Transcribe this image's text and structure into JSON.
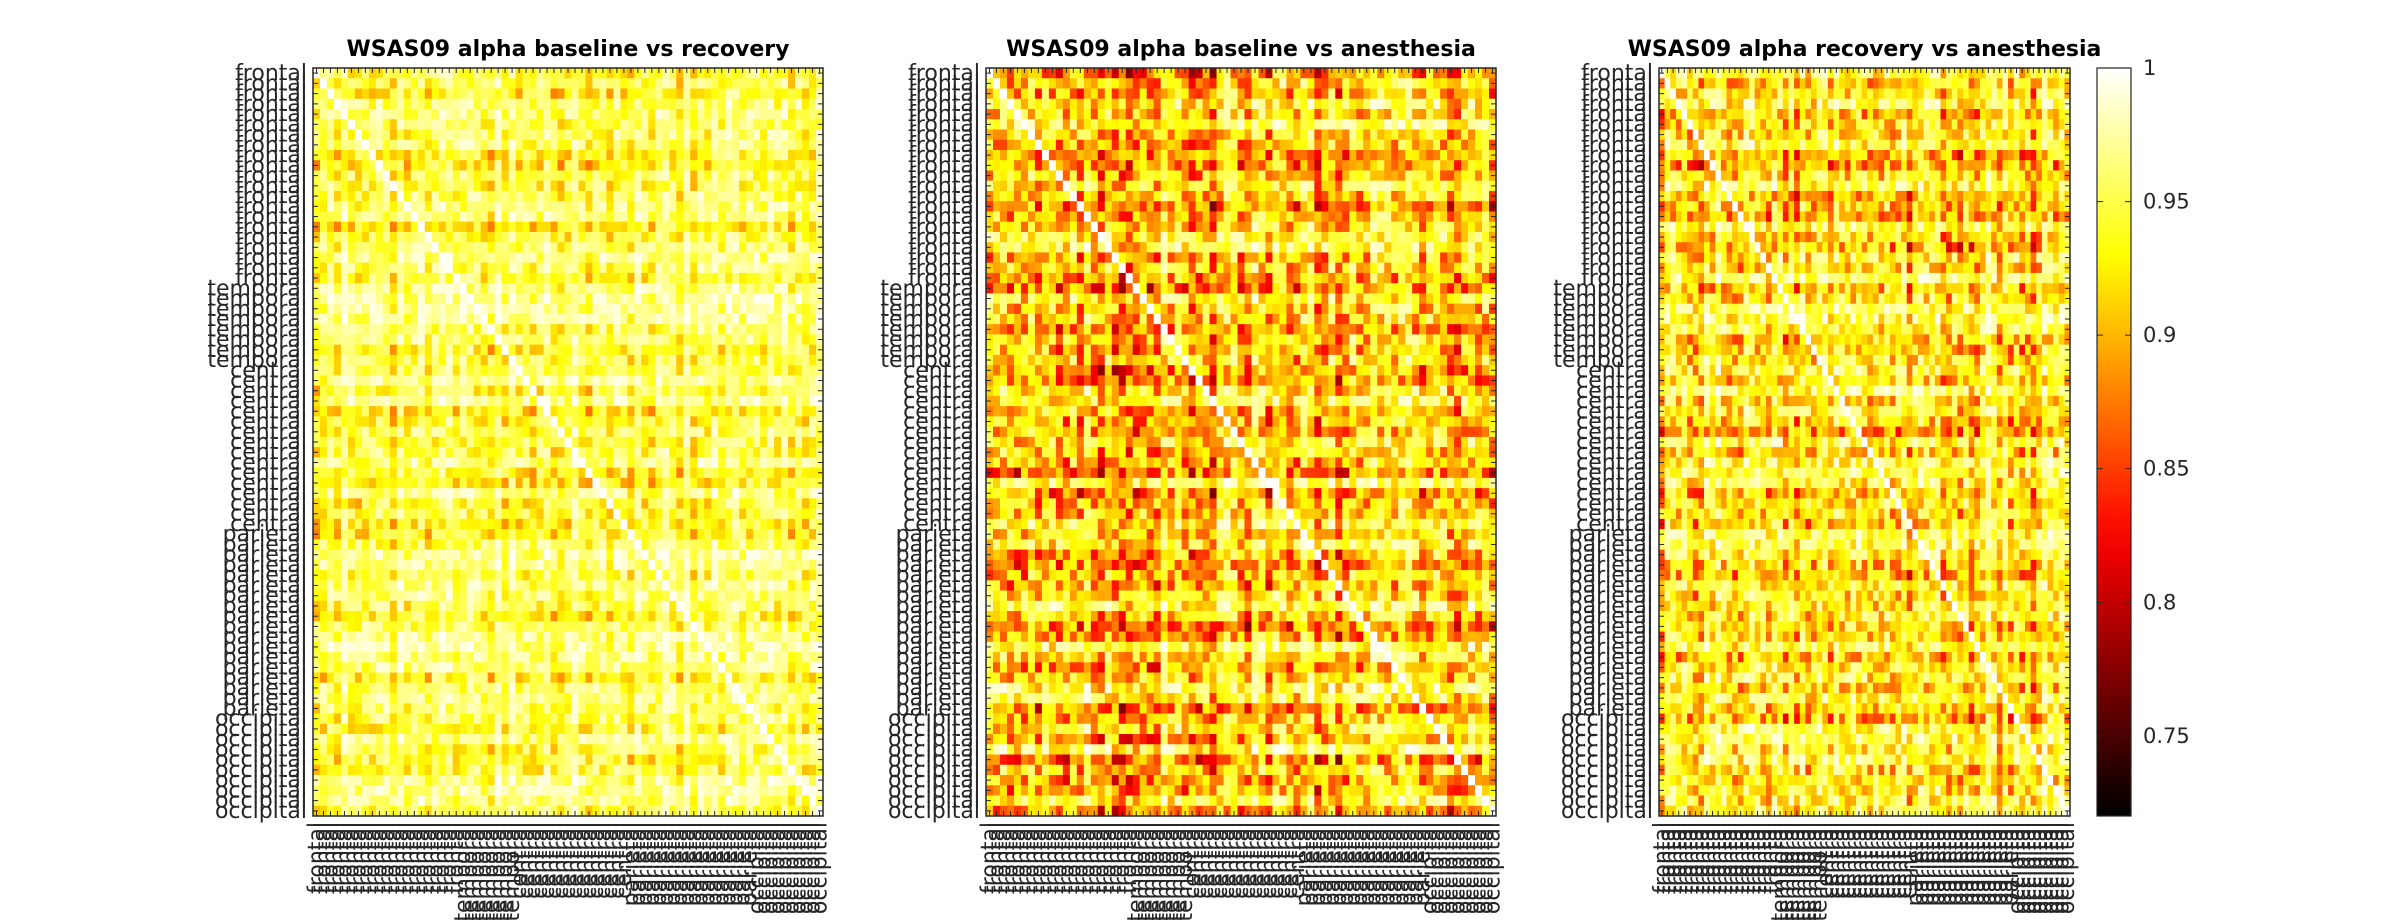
{
  "chart_data": [
    {
      "type": "heatmap",
      "title": "WSAS09 alpha baseline vs recovery",
      "region_labels": [
        "frontal",
        "temporal",
        "central",
        "parietal",
        "occipital"
      ],
      "region_counts": [
        21,
        8,
        16,
        18,
        10
      ],
      "matrix_size": 73,
      "diagonal_value": 1,
      "value_range": [
        0.72,
        1
      ],
      "typical_offdiag_range": [
        0.86,
        1
      ],
      "colormap": "hot"
    },
    {
      "type": "heatmap",
      "title": "WSAS09 alpha baseline vs anesthesia",
      "region_labels": [
        "frontal",
        "temporal",
        "central",
        "parietal",
        "occipital"
      ],
      "region_counts": [
        21,
        8,
        16,
        18,
        10
      ],
      "matrix_size": 73,
      "diagonal_value": 1,
      "value_range": [
        0.72,
        1
      ],
      "typical_offdiag_range": [
        0.76,
        1
      ],
      "colormap": "hot"
    },
    {
      "type": "heatmap",
      "title": "WSAS09 alpha recovery vs anesthesia",
      "region_labels": [
        "frontal",
        "temporal",
        "central",
        "parietal",
        "occipital"
      ],
      "region_counts": [
        21,
        8,
        16,
        18,
        10
      ],
      "matrix_size": 73,
      "diagonal_value": 1,
      "value_range": [
        0.72,
        1
      ],
      "typical_offdiag_range": [
        0.78,
        1
      ],
      "colormap": "hot"
    }
  ],
  "colorbar": {
    "ticks": [
      1,
      0.95,
      0.9,
      0.85,
      0.8,
      0.75
    ],
    "tick_labels": [
      "1",
      "0.95",
      "0.9",
      "0.85",
      "0.8",
      "0.75"
    ],
    "min": 0.72,
    "max": 1
  },
  "colors": {
    "axis": "#262626",
    "background": "#ffffff"
  }
}
